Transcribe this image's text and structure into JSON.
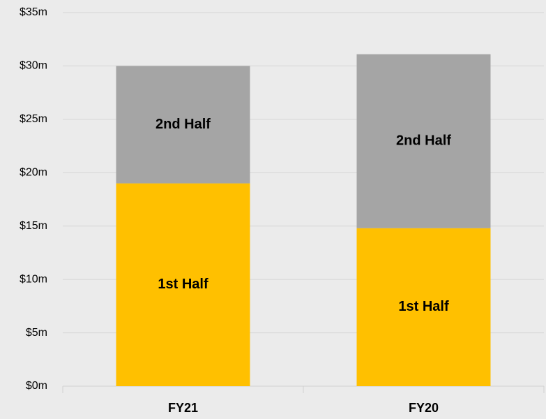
{
  "chart_data": {
    "type": "stacked_bar",
    "categories": [
      "FY21",
      "FY20"
    ],
    "series": [
      {
        "name": "1st Half",
        "color": "#ffc000",
        "values": [
          19,
          14.8
        ]
      },
      {
        "name": "2nd Half",
        "color": "#a5a5a5",
        "values": [
          11,
          16.3
        ]
      }
    ],
    "ylim": [
      0,
      35
    ],
    "yticks": [
      {
        "value": 0,
        "label": "$0m"
      },
      {
        "value": 5,
        "label": "$5m"
      },
      {
        "value": 10,
        "label": "$10m"
      },
      {
        "value": 15,
        "label": "$15m"
      },
      {
        "value": 20,
        "label": "$20m"
      },
      {
        "value": 25,
        "label": "$25m"
      },
      {
        "value": 30,
        "label": "$30m"
      },
      {
        "value": 35,
        "label": "$35m"
      }
    ],
    "grid": true
  }
}
